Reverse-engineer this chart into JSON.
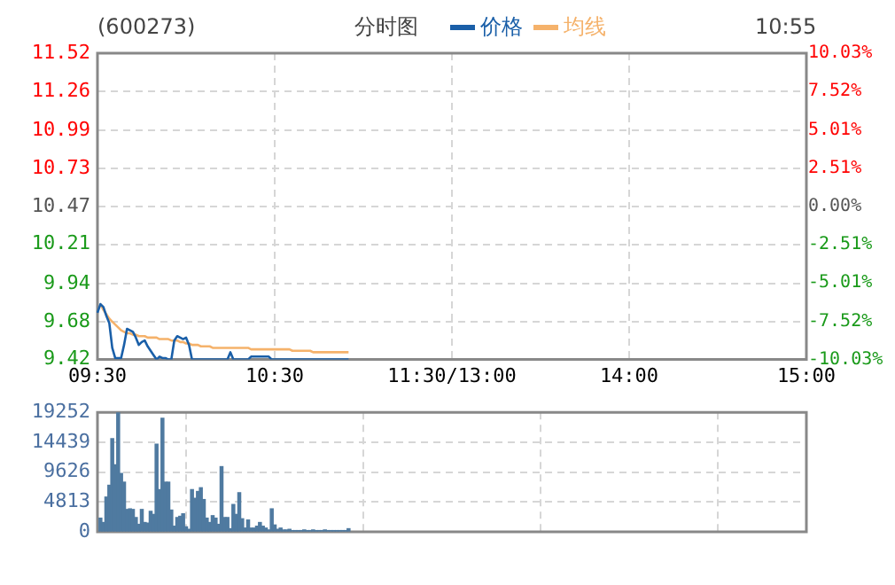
{
  "chart_data": [
    {
      "type": "line",
      "title": "分时图",
      "annotations": [
        "(600273)",
        "10:55"
      ],
      "legend": "top",
      "categories": [
        "09:30",
        null,
        null,
        null,
        null,
        null,
        null,
        null,
        null,
        null,
        null,
        null,
        null,
        null,
        null,
        null,
        null,
        null,
        null,
        null,
        null,
        null,
        null,
        null,
        null,
        null,
        null,
        null,
        null,
        null,
        null,
        null,
        null,
        null,
        null,
        null,
        null,
        null,
        null,
        null,
        null,
        null,
        null,
        null,
        null,
        null,
        null,
        null,
        null,
        null,
        null,
        null,
        null,
        null,
        null,
        null,
        null,
        null,
        null,
        null,
        "10:30",
        null,
        null,
        null,
        null,
        null,
        null,
        null,
        null,
        null,
        null,
        null,
        null,
        null,
        null,
        null,
        null,
        null,
        null,
        null,
        null,
        null,
        null,
        null,
        null,
        null,
        null,
        null,
        null,
        null,
        null,
        null,
        null,
        null,
        null,
        null,
        null,
        null,
        null,
        null,
        null,
        null,
        null,
        null,
        null,
        null,
        null,
        null,
        null,
        null,
        null,
        null,
        null,
        null,
        null,
        null,
        null,
        null,
        null,
        null,
        "11:30/13:00",
        null,
        null,
        null,
        null,
        null,
        null,
        null,
        null,
        null,
        null,
        null,
        null,
        null,
        null,
        null,
        null,
        null,
        null,
        null,
        null,
        null,
        null,
        null,
        null,
        null,
        null,
        null,
        null,
        null,
        null,
        null,
        null,
        null,
        null,
        null,
        null,
        null,
        null,
        null,
        null,
        null,
        null,
        null,
        null,
        null,
        null,
        null,
        null,
        null,
        null,
        null,
        null,
        null,
        null,
        null,
        null,
        null,
        null,
        null,
        "14:00",
        null,
        null,
        null,
        null,
        null,
        null,
        null,
        null,
        null,
        null,
        null,
        null,
        null,
        null,
        null,
        null,
        null,
        null,
        null,
        null,
        null,
        null,
        null,
        null,
        null,
        null,
        null,
        null,
        null,
        null,
        null,
        null,
        null,
        null,
        null,
        null,
        null,
        null,
        null,
        null,
        null,
        null,
        null,
        null,
        null,
        null,
        null,
        null,
        null,
        null,
        null,
        null,
        null,
        null,
        null,
        null,
        null,
        null,
        null,
        "15:00"
      ],
      "ylim": [
        9.42,
        11.52
      ],
      "yticks": [
        9.42,
        9.68,
        9.94,
        10.21,
        10.47,
        10.73,
        10.99,
        11.26,
        11.52
      ],
      "y2lim": [
        -10.03,
        10.03
      ],
      "y2ticks": [
        {
          "value": -10.03,
          "label": "-10.03%"
        },
        {
          "value": -7.52,
          "label": "-7.52%"
        },
        {
          "value": -5.01,
          "label": "-5.01%"
        },
        {
          "value": -2.51,
          "label": "-2.51%"
        },
        {
          "value": 0,
          "label": "0.00%"
        },
        {
          "value": 2.51,
          "label": "2.51%"
        },
        {
          "value": 5.01,
          "label": "5.01%"
        },
        {
          "value": 7.52,
          "label": "7.52%"
        },
        {
          "value": 10.03,
          "label": "10.03%"
        }
      ],
      "grid": true,
      "marker": "none",
      "series": [
        {
          "name": "价格",
          "color": "#1a5fa8",
          "values": [
            9.74,
            9.8,
            9.78,
            9.72,
            9.67,
            9.5,
            9.43,
            9.43,
            9.43,
            9.52,
            9.63,
            9.62,
            9.61,
            9.57,
            9.52,
            9.54,
            9.55,
            9.51,
            9.48,
            9.45,
            9.42,
            9.44,
            9.43,
            9.43,
            9.42,
            9.42,
            9.55,
            9.58,
            9.57,
            9.56,
            9.57,
            9.52,
            9.42,
            9.42,
            9.42,
            9.42,
            9.42,
            9.42,
            9.42,
            9.42,
            9.42,
            9.42,
            9.42,
            9.42,
            9.42,
            9.47,
            9.42,
            9.42,
            9.42,
            9.42,
            9.42,
            9.42,
            9.44,
            9.44,
            9.44,
            9.44,
            9.44,
            9.44,
            9.44,
            9.42,
            9.42,
            9.42,
            9.42,
            9.42,
            9.42,
            9.42,
            9.42,
            9.42,
            9.42,
            9.42,
            9.42,
            9.42,
            9.42,
            9.42,
            9.42,
            9.42,
            9.42,
            9.42,
            9.42,
            9.42,
            9.42,
            9.42,
            9.42,
            9.42,
            9.42,
            9.42,
            null,
            null,
            null,
            null,
            null,
            null,
            null,
            null,
            null,
            null,
            null,
            null,
            null,
            null,
            null,
            null,
            null,
            null,
            null,
            null,
            null,
            null,
            null,
            null,
            null,
            null,
            null,
            null,
            null,
            null,
            null,
            null,
            null,
            null,
            null,
            null,
            null,
            null,
            null,
            null,
            null,
            null,
            null,
            null,
            null,
            null,
            null,
            null,
            null,
            null,
            null,
            null,
            null,
            null,
            null,
            null,
            null,
            null,
            null,
            null,
            null,
            null,
            null,
            null,
            null,
            null,
            null,
            null,
            null,
            null,
            null,
            null,
            null,
            null,
            null,
            null,
            null,
            null,
            null,
            null,
            null,
            null,
            null,
            null,
            null,
            null,
            null,
            null,
            null,
            null,
            null,
            null,
            null,
            null,
            null,
            null,
            null,
            null,
            null,
            null,
            null,
            null,
            null,
            null,
            null,
            null,
            null,
            null,
            null,
            null,
            null,
            null,
            null,
            null,
            null,
            null,
            null,
            null,
            null,
            null,
            null,
            null,
            null,
            null,
            null,
            null,
            null,
            null,
            null,
            null,
            null,
            null,
            null,
            null,
            null,
            null,
            null,
            null,
            null,
            null,
            null,
            null,
            null,
            null,
            null,
            null,
            null,
            null,
            null,
            null,
            null,
            null,
            null,
            null,
            null
          ]
        },
        {
          "name": "均线",
          "color": "#f5b26b",
          "values": [
            null,
            9.8,
            9.76,
            9.73,
            9.7,
            9.68,
            9.66,
            9.64,
            9.62,
            9.61,
            9.6,
            9.6,
            9.59,
            9.59,
            9.58,
            9.58,
            9.58,
            9.57,
            9.57,
            9.57,
            9.57,
            9.56,
            9.56,
            9.56,
            9.56,
            9.55,
            9.55,
            9.55,
            9.54,
            9.54,
            9.53,
            9.53,
            9.52,
            9.52,
            9.52,
            9.51,
            9.51,
            9.51,
            9.51,
            9.5,
            9.5,
            9.5,
            9.5,
            9.5,
            9.5,
            9.5,
            9.5,
            9.5,
            9.5,
            9.5,
            9.5,
            9.5,
            9.49,
            9.49,
            9.49,
            9.49,
            9.49,
            9.49,
            9.49,
            9.49,
            9.49,
            9.49,
            9.49,
            9.49,
            9.49,
            9.49,
            9.48,
            9.48,
            9.48,
            9.48,
            9.48,
            9.48,
            9.48,
            9.47,
            9.47,
            9.47,
            9.47,
            9.47,
            9.47,
            9.47,
            9.47,
            9.47,
            9.47,
            9.47,
            9.47,
            9.47,
            null,
            null,
            null,
            null,
            null,
            null,
            null,
            null,
            null,
            null,
            null,
            null,
            null,
            null,
            null,
            null,
            null,
            null,
            null,
            null,
            null,
            null,
            null,
            null,
            null,
            null,
            null,
            null,
            null,
            null,
            null,
            null,
            null,
            null,
            null,
            null,
            null,
            null,
            null,
            null,
            null,
            null,
            null,
            null,
            null,
            null,
            null,
            null,
            null,
            null,
            null,
            null,
            null,
            null,
            null,
            null,
            null,
            null,
            null,
            null,
            null,
            null,
            null,
            null,
            null,
            null,
            null,
            null,
            null,
            null,
            null,
            null,
            null,
            null,
            null,
            null,
            null,
            null,
            null,
            null,
            null,
            null,
            null,
            null,
            null,
            null,
            null,
            null,
            null,
            null,
            null,
            null,
            null,
            null,
            null,
            null,
            null,
            null,
            null,
            null,
            null,
            null,
            null,
            null,
            null,
            null,
            null,
            null,
            null,
            null,
            null,
            null,
            null,
            null,
            null,
            null,
            null,
            null,
            null,
            null,
            null,
            null,
            null,
            null,
            null,
            null,
            null,
            null,
            null,
            null,
            null,
            null,
            null,
            null,
            null,
            null,
            null,
            null,
            null,
            null,
            null,
            null,
            null,
            null,
            null,
            null,
            null,
            null,
            null,
            null,
            null,
            null,
            null,
            null,
            null
          ]
        }
      ]
    },
    {
      "type": "bar",
      "tick_labels": "y",
      "grid": true,
      "categories": [
        null,
        null,
        null,
        null,
        null,
        null,
        null,
        null,
        null,
        null,
        null,
        null,
        null,
        null,
        null,
        null,
        null,
        null,
        null,
        null,
        null,
        null,
        null,
        null,
        null,
        null,
        null,
        null,
        null,
        null,
        null,
        null,
        null,
        null,
        null,
        null,
        null,
        null,
        null,
        null,
        null,
        null,
        null,
        null,
        null,
        null,
        null,
        null,
        null,
        null,
        null,
        null,
        null,
        null,
        null,
        null,
        null,
        null,
        null,
        null,
        null,
        null,
        null,
        null,
        null,
        null,
        null,
        null,
        null,
        null,
        null,
        null,
        null,
        null,
        null,
        null,
        null,
        null,
        null,
        null,
        null,
        null,
        null,
        null,
        null,
        null,
        null,
        null,
        null,
        null,
        null,
        null,
        null,
        null,
        null,
        null,
        null,
        null,
        null,
        null,
        null,
        null,
        null,
        null,
        null,
        null,
        null,
        null,
        null,
        null,
        null,
        null,
        null,
        null,
        null,
        null,
        null,
        null,
        null,
        null,
        null,
        null,
        null,
        null,
        null,
        null,
        null,
        null,
        null,
        null,
        null,
        null,
        null,
        null,
        null,
        null,
        null,
        null,
        null,
        null,
        null,
        null,
        null,
        null,
        null,
        null,
        null,
        null,
        null,
        null,
        null,
        null,
        null,
        null,
        null,
        null,
        null,
        null,
        null,
        null,
        null,
        null,
        null,
        null,
        null,
        null,
        null,
        null,
        null,
        null,
        null,
        null,
        null,
        null,
        null,
        null,
        null,
        null,
        null,
        null,
        null,
        null,
        null,
        null,
        null,
        null,
        null,
        null,
        null,
        null,
        null,
        null,
        null,
        null,
        null,
        null,
        null,
        null,
        null,
        null,
        null,
        null,
        null,
        null,
        null,
        null,
        null,
        null,
        null,
        null,
        null,
        null,
        null,
        null,
        null,
        null,
        null,
        null,
        null,
        null,
        null,
        null,
        null,
        null,
        null,
        null,
        null,
        null,
        null,
        null,
        null,
        null,
        null,
        null,
        null,
        null,
        null,
        null,
        null,
        null,
        null
      ],
      "ylim": [
        0,
        19252
      ],
      "yticks": [
        0,
        4813,
        9626,
        14439,
        19252
      ],
      "series": [
        {
          "color": "#4f7aa0",
          "values": [
            null,
            2200,
            1500,
            5600,
            7500,
            15000,
            10800,
            19200,
            9400,
            8000,
            3600,
            3700,
            3600,
            2300,
            1200,
            3600,
            1500,
            1400,
            3300,
            2800,
            14100,
            6800,
            18300,
            8000,
            8000,
            3500,
            900,
            2300,
            2500,
            2900,
            800,
            400,
            6800,
            5400,
            6500,
            7100,
            5200,
            2200,
            1500,
            2600,
            2200,
            1200,
            10500,
            2300,
            2300,
            500,
            4400,
            2800,
            6300,
            2100,
            600,
            1900,
            600,
            600,
            900,
            1500,
            900,
            600,
            300,
            3700,
            1100,
            400,
            600,
            300,
            300,
            400,
            200,
            200,
            200,
            200,
            300,
            200,
            200,
            300,
            200,
            200,
            200,
            300,
            200,
            200,
            200,
            200,
            200,
            200,
            200,
            500,
            null,
            null,
            null,
            null,
            null,
            null,
            null,
            null,
            null,
            null,
            null,
            null,
            null,
            null,
            null,
            null,
            null,
            null,
            null,
            null,
            null,
            null,
            null,
            null,
            null,
            null,
            null,
            null,
            null,
            null,
            null,
            null,
            null,
            null,
            null,
            null,
            null,
            null,
            null,
            null,
            null,
            null,
            null,
            null,
            null,
            null,
            null,
            null,
            null,
            null,
            null,
            null,
            null,
            null,
            null,
            null,
            null,
            null,
            null,
            null,
            null,
            null,
            null,
            null,
            null,
            null,
            null,
            null,
            null,
            null,
            null,
            null,
            null,
            null,
            null,
            null,
            null,
            null,
            null,
            null,
            null,
            null,
            null,
            null,
            null,
            null,
            null,
            null,
            null,
            null,
            null,
            null,
            null,
            null,
            null,
            null,
            null,
            null,
            null,
            null,
            null,
            null,
            null,
            null,
            null,
            null,
            null,
            null,
            null,
            null,
            null,
            null,
            null,
            null,
            null,
            null,
            null,
            null,
            null,
            null,
            null,
            null,
            null,
            null,
            null,
            null,
            null,
            null,
            null,
            null,
            null,
            null,
            null,
            null,
            null,
            null,
            null,
            null,
            null,
            null,
            null,
            null,
            null,
            null,
            null,
            null,
            null,
            null,
            null,
            null,
            null,
            null,
            null,
            null,
            null
          ]
        }
      ]
    }
  ]
}
